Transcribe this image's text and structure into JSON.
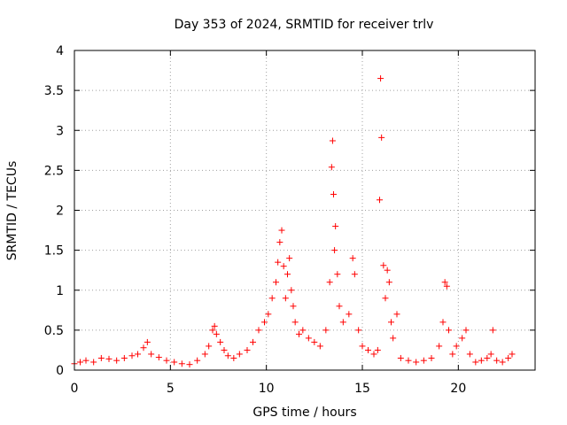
{
  "chart_data": {
    "type": "scatter",
    "title": "Day 353 of 2024, SRMTID for receiver trlv",
    "xlabel": "GPS time / hours",
    "ylabel": "SRMTID / TECUs",
    "xlim": [
      0,
      24
    ],
    "ylim": [
      0,
      4
    ],
    "x_ticks": [
      "0",
      "5",
      "10",
      "15",
      "20"
    ],
    "y_ticks": [
      "0",
      "0.5",
      "1",
      "1.5",
      "2",
      "2.5",
      "3",
      "3.5",
      "4"
    ],
    "grid": true,
    "marker": "+",
    "series_color": "#ff0000",
    "series": [
      {
        "x": [
          0.0,
          0.3,
          0.6,
          1.0,
          1.4,
          1.8,
          2.2,
          2.6,
          3.0,
          3.3,
          3.6,
          3.8,
          4.0,
          4.4,
          4.8,
          5.2,
          5.6,
          6.0,
          6.4,
          6.8,
          7.0,
          7.2,
          7.3,
          7.4,
          7.6,
          7.8,
          8.0,
          8.3,
          8.6,
          9.0,
          9.3,
          9.6,
          9.9,
          10.1,
          10.3,
          10.5,
          10.6,
          10.7,
          10.8,
          10.9,
          11.0,
          11.1,
          11.2,
          11.3,
          11.4,
          11.5,
          11.7,
          11.9,
          12.2,
          12.5,
          12.8,
          13.1,
          13.3,
          13.4,
          13.45,
          13.5,
          13.55,
          13.6,
          13.7,
          13.8,
          14.0,
          14.3,
          14.5,
          14.6,
          14.8,
          15.0,
          15.3,
          15.6,
          15.8,
          15.9,
          15.95,
          16.0,
          16.1,
          16.2,
          16.3,
          16.4,
          16.5,
          16.6,
          16.8,
          17.0,
          17.4,
          17.8,
          18.2,
          18.6,
          19.0,
          19.2,
          19.3,
          19.4,
          19.5,
          19.7,
          19.9,
          20.2,
          20.4,
          20.6,
          20.9,
          21.2,
          21.5,
          21.7,
          21.8,
          22.0,
          22.3,
          22.6,
          22.8
        ],
        "y": [
          0.08,
          0.1,
          0.12,
          0.1,
          0.15,
          0.14,
          0.12,
          0.15,
          0.18,
          0.2,
          0.28,
          0.35,
          0.2,
          0.16,
          0.12,
          0.1,
          0.08,
          0.07,
          0.12,
          0.2,
          0.3,
          0.5,
          0.55,
          0.45,
          0.35,
          0.25,
          0.18,
          0.15,
          0.2,
          0.25,
          0.35,
          0.5,
          0.6,
          0.7,
          0.9,
          1.1,
          1.35,
          1.6,
          1.75,
          1.3,
          0.9,
          1.2,
          1.4,
          1.0,
          0.8,
          0.6,
          0.45,
          0.5,
          0.4,
          0.35,
          0.3,
          0.5,
          1.1,
          2.54,
          2.87,
          2.2,
          1.5,
          1.8,
          1.2,
          0.8,
          0.6,
          0.7,
          1.4,
          1.2,
          0.5,
          0.3,
          0.25,
          0.2,
          0.25,
          2.13,
          3.65,
          2.91,
          1.31,
          0.9,
          1.25,
          1.1,
          0.6,
          0.4,
          0.7,
          0.15,
          0.12,
          0.1,
          0.12,
          0.15,
          0.3,
          0.6,
          1.1,
          1.05,
          0.5,
          0.2,
          0.3,
          0.4,
          0.5,
          0.2,
          0.1,
          0.12,
          0.15,
          0.2,
          0.5,
          0.12,
          0.1,
          0.15,
          0.2
        ]
      }
    ]
  }
}
